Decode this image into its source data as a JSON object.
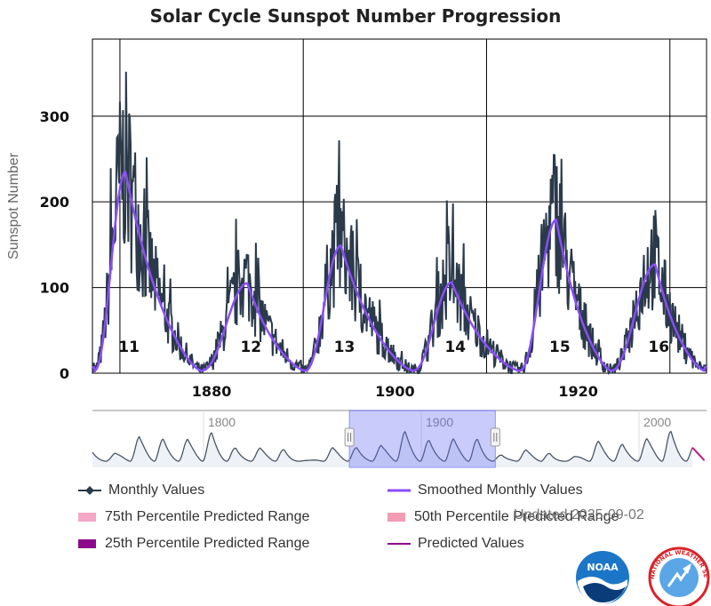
{
  "chart_data": {
    "type": "line",
    "title": "Solar Cycle Sunspot Number Progression",
    "ylabel": "Sunspot Number",
    "xlabel": "",
    "xlim": [
      1867,
      1934
    ],
    "ylim": [
      0,
      390
    ],
    "y_ticks": [
      {
        "value": 0,
        "label": "0"
      },
      {
        "value": 100,
        "label": "100"
      },
      {
        "value": 200,
        "label": "200"
      },
      {
        "value": 300,
        "label": "300"
      }
    ],
    "x_ticks": [
      {
        "value": 1880,
        "label": "1880"
      },
      {
        "value": 1900,
        "label": "1900"
      },
      {
        "value": 1920,
        "label": "1920"
      }
    ],
    "grid": true,
    "cycles": [
      {
        "label": "11",
        "start": 1867.2,
        "max": 1870.6,
        "peak": 232,
        "end": 1878.9
      },
      {
        "label": "12",
        "start": 1878.9,
        "max": 1883.9,
        "peak": 102,
        "end": 1890.2
      },
      {
        "label": "13",
        "start": 1890.2,
        "max": 1894.1,
        "peak": 146,
        "end": 1902.0
      },
      {
        "label": "14",
        "start": 1902.0,
        "max": 1906.2,
        "peak": 103,
        "end": 1913.6
      },
      {
        "label": "15",
        "start": 1913.6,
        "max": 1917.6,
        "peak": 176,
        "end": 1923.6
      },
      {
        "label": "16",
        "start": 1923.6,
        "max": 1928.4,
        "peak": 124,
        "end": 1933.8
      }
    ],
    "navigator": {
      "xlim": [
        1749,
        2031
      ],
      "ticks": [
        {
          "value": 1800,
          "label": "1800"
        },
        {
          "value": 1900,
          "label": "1900"
        },
        {
          "value": 2000,
          "label": "2000"
        }
      ],
      "selection": [
        1867,
        1934
      ],
      "predicted_from": 2024.5
    },
    "series": [
      {
        "name": "Monthly Values",
        "color": "#2b3a4a",
        "marker": "diamond"
      },
      {
        "name": "Smoothed Monthly Values",
        "color": "#8a4dff"
      },
      {
        "name": "75th Percentile Predicted Range",
        "color": "#f4a7c6"
      },
      {
        "name": "50th Percentile Predicted Range",
        "color": "#f29bb3"
      },
      {
        "name": "25th Percentile Predicted Range",
        "color": "#8b0a8b"
      },
      {
        "name": "Predicted Values",
        "color": "#8b008b"
      }
    ]
  },
  "updated": "Updated 2025-09-02",
  "logos": {
    "noaa": "NOAA",
    "nws": "NATIONAL WEATHER SERVICE"
  }
}
